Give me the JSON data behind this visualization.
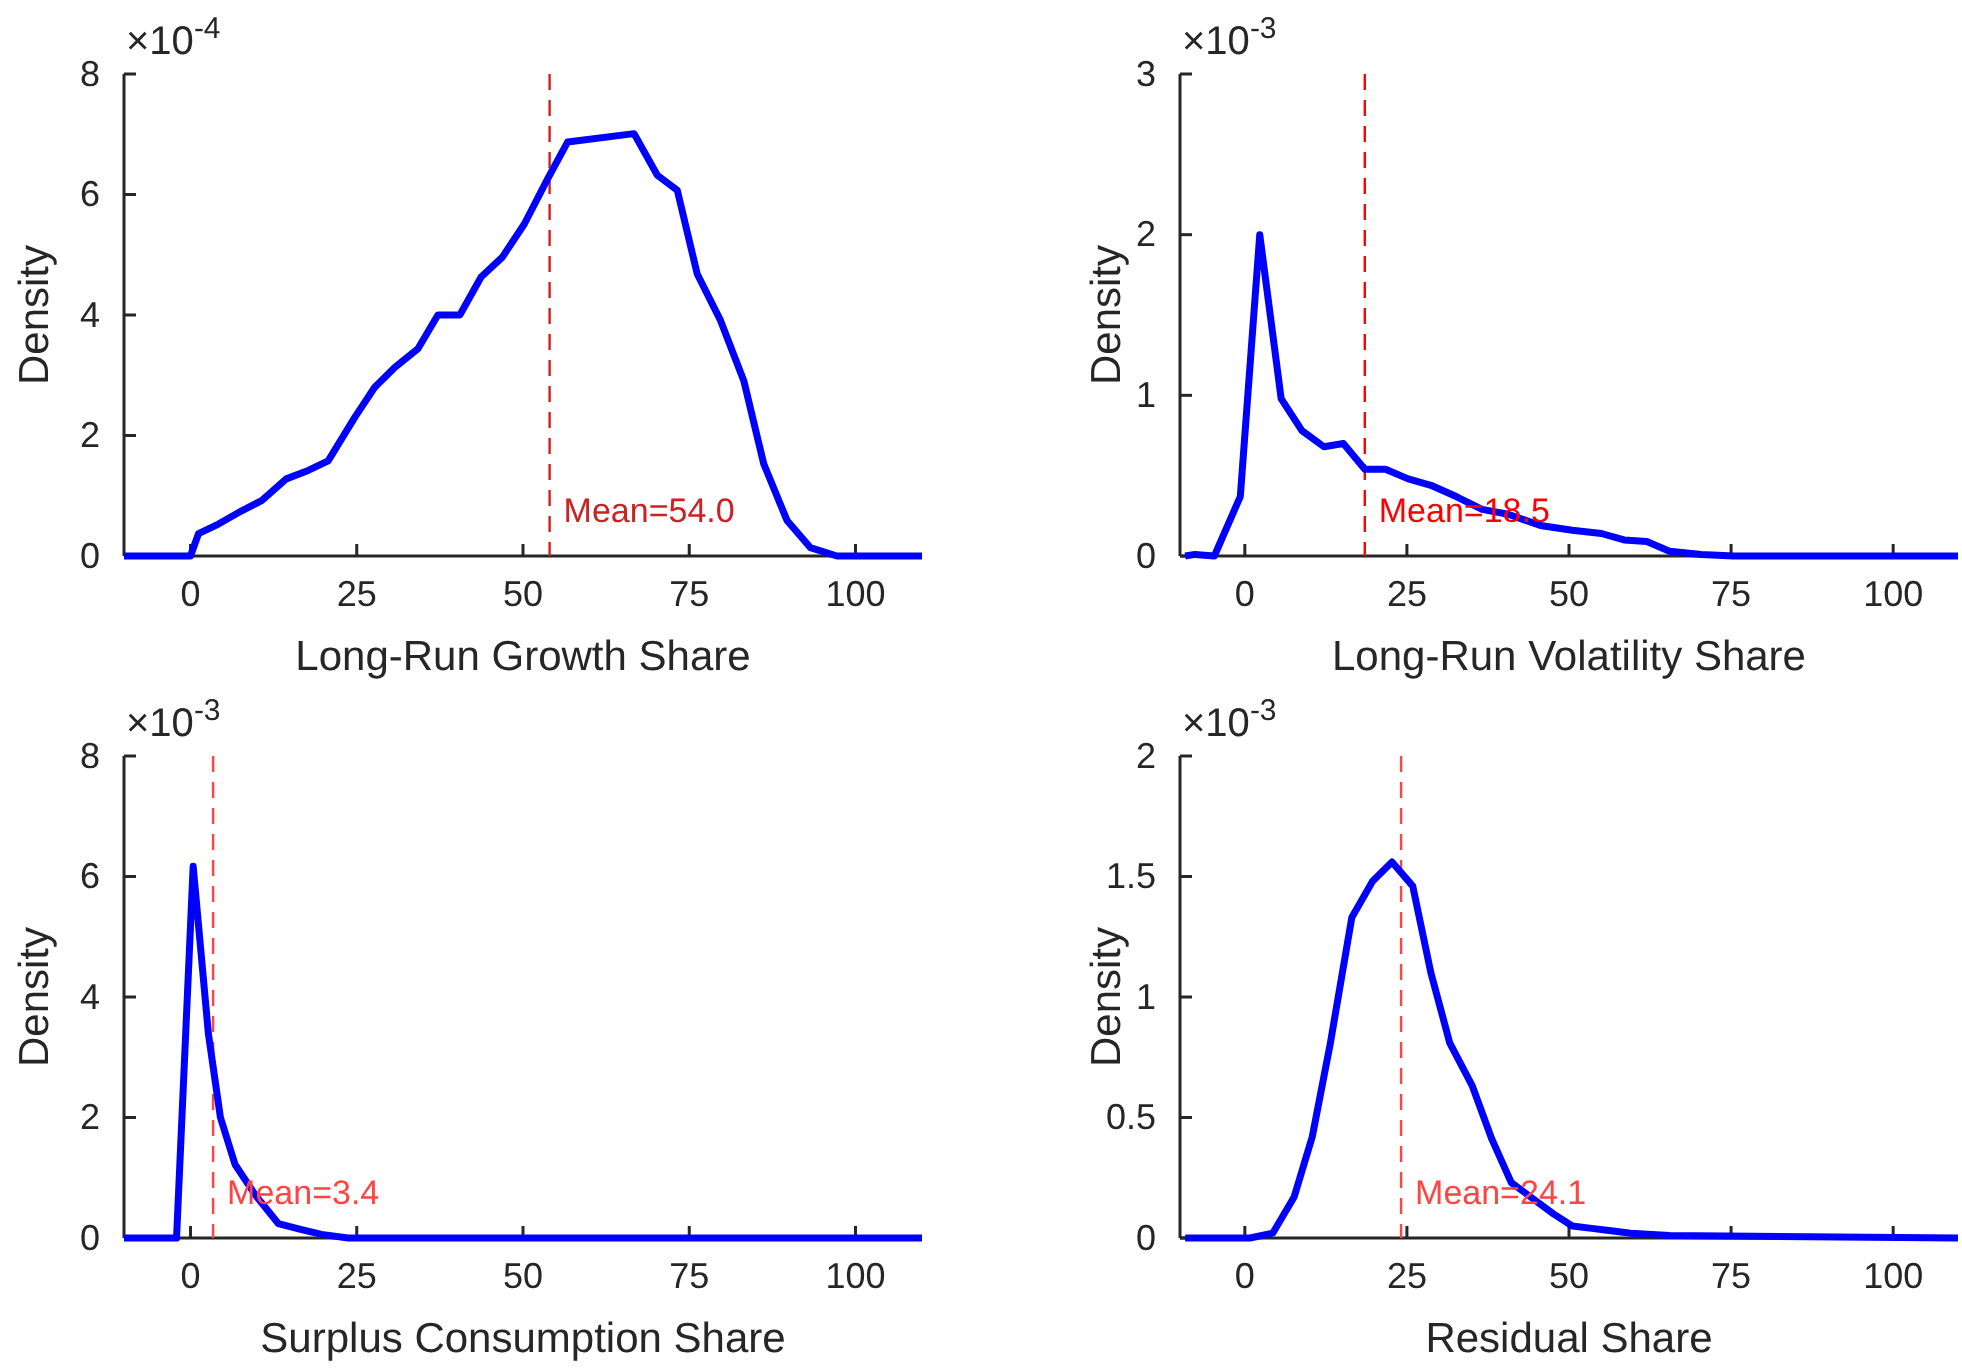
{
  "chart_data": [
    {
      "type": "line",
      "xlabel": "Long-Run Growth Share",
      "ylabel": "Density",
      "annotations": [
        "×10$^{-4}$"
      ],
      "xlim": [
        -10,
        110
      ],
      "xticks": [
        0,
        25,
        50,
        75,
        100
      ],
      "ylim": [
        0,
        8
      ],
      "yticks": [
        0,
        2,
        4,
        6,
        8
      ],
      "series": [
        {
          "color": "#0000ff",
          "x": [
            -10,
            0,
            1.2,
            4.2,
            7.7,
            10.7,
            14.4,
            17.7,
            20.7,
            24.7,
            27.7,
            30.7,
            34.2,
            37.2,
            40.5,
            43.7,
            46.9,
            50.2,
            53.7,
            56.7,
            66.7,
            70.2,
            73.2,
            76.2,
            79.7,
            83.2,
            86.2,
            89.7,
            93.2,
            97.2,
            110
          ],
          "values": [
            0,
            0,
            0.37,
            0.53,
            0.75,
            0.92,
            1.28,
            1.42,
            1.58,
            2.3,
            2.8,
            3.13,
            3.44,
            4.0,
            4.0,
            4.63,
            4.96,
            5.51,
            6.26,
            6.87,
            7.01,
            6.32,
            6.07,
            4.68,
            3.91,
            2.91,
            1.53,
            0.59,
            0.14,
            0,
            0
          ]
        }
      ],
      "ref_lines": [
        {
          "axis": "x",
          "value": 54.0,
          "label": "Mean=54.0",
          "color": "#cc2222",
          "line_style": "dashed"
        }
      ]
    },
    {
      "type": "line",
      "xlabel": "Long-Run Volatility Share",
      "ylabel": "Density",
      "annotations": [
        "×10$^{-3}$"
      ],
      "xlim": [
        -10,
        110
      ],
      "xticks": [
        0,
        25,
        50,
        75,
        100
      ],
      "ylim": [
        0,
        3
      ],
      "yticks": [
        0,
        1,
        2,
        3
      ],
      "series": [
        {
          "color": "#0000ff",
          "x": [
            -9.2,
            -7.7,
            -4.7,
            -0.7,
            2.3,
            5.6,
            8.8,
            12.2,
            15.2,
            18.5,
            21.7,
            25.2,
            28.7,
            32.6,
            36.6,
            40.6,
            45.6,
            50.5,
            55.0,
            58.5,
            62.0,
            65.5,
            70.4,
            75.4,
            110
          ],
          "values": [
            0,
            0.01,
            0,
            0.37,
            2.0,
            0.98,
            0.78,
            0.68,
            0.7,
            0.54,
            0.54,
            0.48,
            0.44,
            0.37,
            0.29,
            0.26,
            0.19,
            0.16,
            0.14,
            0.1,
            0.09,
            0.03,
            0.01,
            0,
            0
          ]
        }
      ],
      "ref_lines": [
        {
          "axis": "x",
          "value": 18.5,
          "label": "Mean=18.5",
          "color": "#ff0000",
          "line_style": "dashed"
        }
      ]
    },
    {
      "type": "line",
      "xlabel": "Surplus Consumption Share",
      "ylabel": "Density",
      "annotations": [
        "×10$^{-3}$"
      ],
      "xlim": [
        -10,
        110
      ],
      "xticks": [
        0,
        25,
        50,
        75,
        100
      ],
      "ylim": [
        0,
        8
      ],
      "yticks": [
        0,
        2,
        4,
        6,
        8
      ],
      "series": [
        {
          "color": "#0000ff",
          "x": [
            -10,
            -2.1,
            0.4,
            2.7,
            4.5,
            6.7,
            9.7,
            13.2,
            16.7,
            19.7,
            23.7,
            110
          ],
          "values": [
            0,
            0,
            6.17,
            3.38,
            2.0,
            1.22,
            0.72,
            0.24,
            0.14,
            0.06,
            0,
            0
          ]
        }
      ],
      "ref_lines": [
        {
          "axis": "x",
          "value": 3.4,
          "label": "Mean=3.4",
          "color": "#ff4444",
          "line_style": "dashed"
        }
      ]
    },
    {
      "type": "line",
      "xlabel": "Residual Share",
      "ylabel": "Density",
      "annotations": [
        "×10$^{-3}$"
      ],
      "xlim": [
        -10,
        110
      ],
      "xticks": [
        0,
        25,
        50,
        75,
        100
      ],
      "ylim": [
        0,
        2
      ],
      "yticks": [
        0,
        0.5,
        1,
        1.5,
        2
      ],
      "series": [
        {
          "color": "#0000ff",
          "x": [
            -9.2,
            0.8,
            4.3,
            7.6,
            10.4,
            13.2,
            16.5,
            19.7,
            22.7,
            25.9,
            28.7,
            31.6,
            35.1,
            38.1,
            41.1,
            44.6,
            47.6,
            50.5,
            53.5,
            56.5,
            59.5,
            65.5,
            110
          ],
          "values": [
            0,
            0,
            0.02,
            0.17,
            0.42,
            0.81,
            1.33,
            1.48,
            1.56,
            1.46,
            1.1,
            0.81,
            0.63,
            0.41,
            0.23,
            0.16,
            0.1,
            0.05,
            0.04,
            0.03,
            0.02,
            0.01,
            0
          ]
        }
      ],
      "ref_lines": [
        {
          "axis": "x",
          "value": 24.1,
          "label": "Mean=24.1",
          "color": "#ff4444",
          "line_style": "dashed"
        }
      ]
    }
  ]
}
